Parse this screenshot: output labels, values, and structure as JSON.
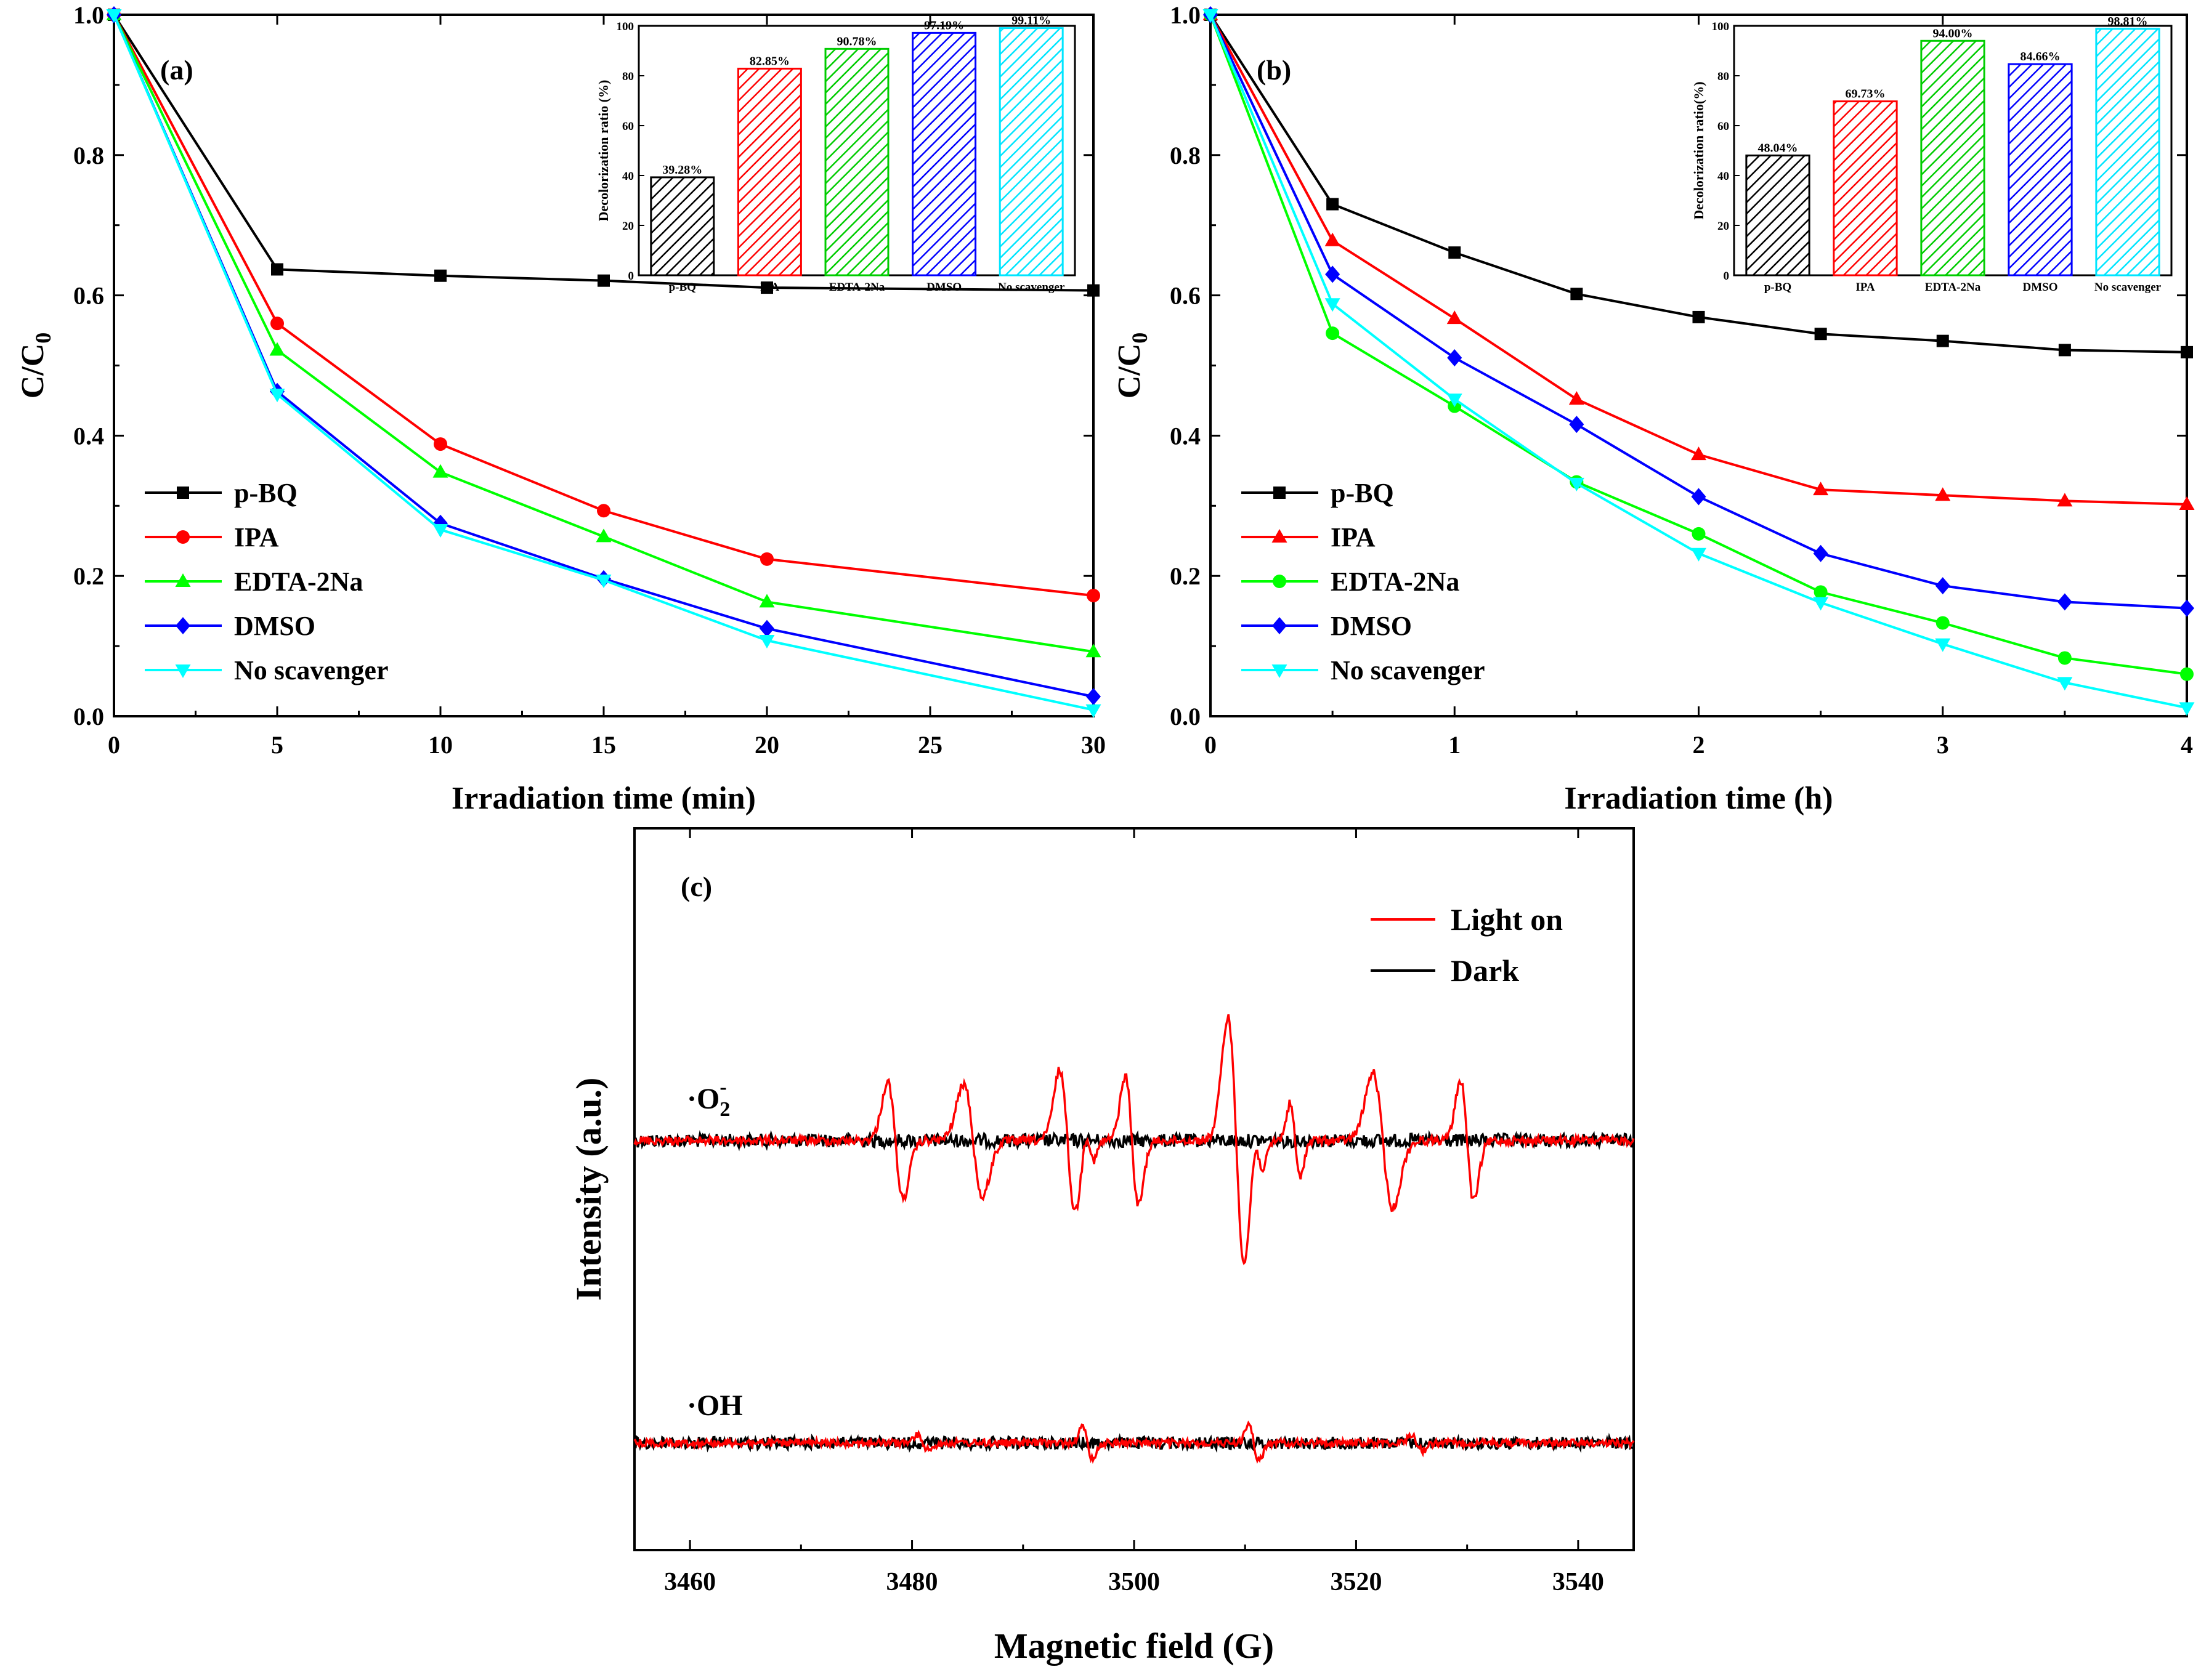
{
  "chart_data": [
    {
      "id": "a",
      "type": "line",
      "panel_label": "(a)",
      "xlabel": "Irradiation time (min)",
      "ylabel_main": "C/C",
      "ylabel_sub": "0",
      "xlim": [
        0,
        30
      ],
      "ylim": [
        0,
        1.0
      ],
      "xticks": [
        "0",
        "5",
        "10",
        "15",
        "20",
        "25",
        "30"
      ],
      "yticks": [
        "0.0",
        "0.2",
        "0.4",
        "0.6",
        "0.8",
        "1.0"
      ],
      "x": [
        0,
        5,
        10,
        15,
        20,
        30
      ],
      "series": [
        {
          "name": "p-BQ",
          "color": "#000000",
          "marker": "square",
          "values": [
            1.0,
            0.637,
            0.628,
            0.621,
            0.611,
            0.607
          ]
        },
        {
          "name": "IPA",
          "color": "#ff0000",
          "marker": "circle",
          "values": [
            1.0,
            0.56,
            0.388,
            0.293,
            0.224,
            0.172
          ]
        },
        {
          "name": "EDTA-2Na",
          "color": "#00ff00",
          "marker": "triangle-up",
          "values": [
            1.0,
            0.522,
            0.348,
            0.256,
            0.163,
            0.092
          ]
        },
        {
          "name": "DMSO",
          "color": "#0000ff",
          "marker": "diamond",
          "values": [
            1.0,
            0.463,
            0.275,
            0.196,
            0.125,
            0.028
          ]
        },
        {
          "name": "No scavenger",
          "color": "#00ffff",
          "marker": "triangle-down",
          "values": [
            1.0,
            0.459,
            0.266,
            0.194,
            0.108,
            0.009
          ]
        }
      ],
      "inset": {
        "type": "bar",
        "ylabel": "Decolorization ratio (%)",
        "ylim": [
          0,
          100
        ],
        "yticks": [
          "0",
          "20",
          "40",
          "60",
          "80",
          "100"
        ],
        "categories": [
          "p-BQ",
          "IPA",
          "EDTA-2Na",
          "DMSO",
          "No scavenger"
        ],
        "values": [
          39.28,
          82.85,
          90.78,
          97.19,
          99.11
        ],
        "labels": [
          "39.28%",
          "82.85%",
          "90.78%",
          "97.19%",
          "99.11%"
        ],
        "colors": [
          "#000000",
          "#ff0000",
          "#00cc00",
          "#0000ff",
          "#00e5ff"
        ]
      }
    },
    {
      "id": "b",
      "type": "line",
      "panel_label": "(b)",
      "xlabel": "Irradiation time (h)",
      "ylabel_main": "C/C",
      "ylabel_sub": "0",
      "xlim": [
        0,
        4
      ],
      "ylim": [
        0,
        1.0
      ],
      "xticks": [
        "0",
        "1",
        "2",
        "3",
        "4"
      ],
      "yticks": [
        "0.0",
        "0.2",
        "0.4",
        "0.6",
        "0.8",
        "1.0"
      ],
      "x": [
        0,
        0.5,
        1,
        1.5,
        2,
        2.5,
        3,
        3.5,
        4
      ],
      "series": [
        {
          "name": "p-BQ",
          "color": "#000000",
          "marker": "square",
          "values": [
            1.0,
            0.73,
            0.661,
            0.602,
            0.569,
            0.545,
            0.535,
            0.522,
            0.519
          ]
        },
        {
          "name": "IPA",
          "color": "#ff0000",
          "marker": "triangle-up",
          "values": [
            1.0,
            0.678,
            0.567,
            0.452,
            0.373,
            0.323,
            0.315,
            0.307,
            0.302
          ]
        },
        {
          "name": "EDTA-2Na",
          "color": "#00ff00",
          "marker": "circle",
          "values": [
            1.0,
            0.546,
            0.442,
            0.334,
            0.26,
            0.177,
            0.133,
            0.083,
            0.06
          ]
        },
        {
          "name": "DMSO",
          "color": "#0000ff",
          "marker": "diamond",
          "values": [
            1.0,
            0.63,
            0.511,
            0.416,
            0.313,
            0.232,
            0.186,
            0.163,
            0.154
          ]
        },
        {
          "name": "No scavenger",
          "color": "#00ffff",
          "marker": "triangle-down",
          "values": [
            1.0,
            0.588,
            0.452,
            0.332,
            0.232,
            0.162,
            0.103,
            0.048,
            0.012
          ]
        }
      ],
      "inset": {
        "type": "bar",
        "ylabel": "Decolorization ratio(%)",
        "ylim": [
          0,
          100
        ],
        "yticks": [
          "0",
          "20",
          "40",
          "60",
          "80",
          "100"
        ],
        "categories": [
          "p-BQ",
          "IPA",
          "EDTA-2Na",
          "DMSO",
          "No scavenger"
        ],
        "values": [
          48.04,
          69.73,
          94.0,
          84.66,
          98.81
        ],
        "labels": [
          "48.04%",
          "69.73%",
          "94.00%",
          "84.66%",
          "98.81%"
        ],
        "colors": [
          "#000000",
          "#ff0000",
          "#00cc00",
          "#0000ff",
          "#00e5ff"
        ]
      }
    },
    {
      "id": "c",
      "type": "line",
      "panel_label": "(c)",
      "xlabel": "Magnetic field (G)",
      "ylabel": "Intensity (a.u.)",
      "xlim": [
        3455,
        3545
      ],
      "xticks": [
        "3460",
        "3480",
        "3500",
        "3520",
        "3540"
      ],
      "annotations": [
        {
          "text": "·O",
          "sub": "2",
          "sup": "-"
        },
        {
          "text": "·OH"
        }
      ],
      "legend": [
        {
          "name": "Light on",
          "color": "#ff0000"
        },
        {
          "name": "Dark",
          "color": "#000000"
        }
      ],
      "o2_peaks": [
        {
          "center": 3478.5,
          "amp": 95,
          "sigma": 0.7
        },
        {
          "center": 3485.5,
          "amp": 92,
          "sigma": 0.85
        },
        {
          "center": 3494.0,
          "amp": 115,
          "sigma": 0.7
        },
        {
          "center": 3496.0,
          "amp": 30,
          "sigma": 0.4
        },
        {
          "center": 3499.8,
          "amp": 105,
          "sigma": 0.6
        },
        {
          "center": 3509.2,
          "amp": 200,
          "sigma": 0.75
        },
        {
          "center": 3511.2,
          "amp": 40,
          "sigma": 0.45
        },
        {
          "center": 3514.5,
          "amp": 60,
          "sigma": 0.45
        },
        {
          "center": 3522.4,
          "amp": 110,
          "sigma": 0.9
        },
        {
          "center": 3530.0,
          "amp": 98,
          "sigma": 0.6
        }
      ],
      "oh_peaks": [
        {
          "center": 3481.0,
          "amp": 12,
          "sigma": 0.5
        },
        {
          "center": 3495.8,
          "amp": 25,
          "sigma": 0.45
        },
        {
          "center": 3510.8,
          "amp": 30,
          "sigma": 0.45
        },
        {
          "center": 3525.5,
          "amp": 12,
          "sigma": 0.5
        }
      ]
    }
  ]
}
